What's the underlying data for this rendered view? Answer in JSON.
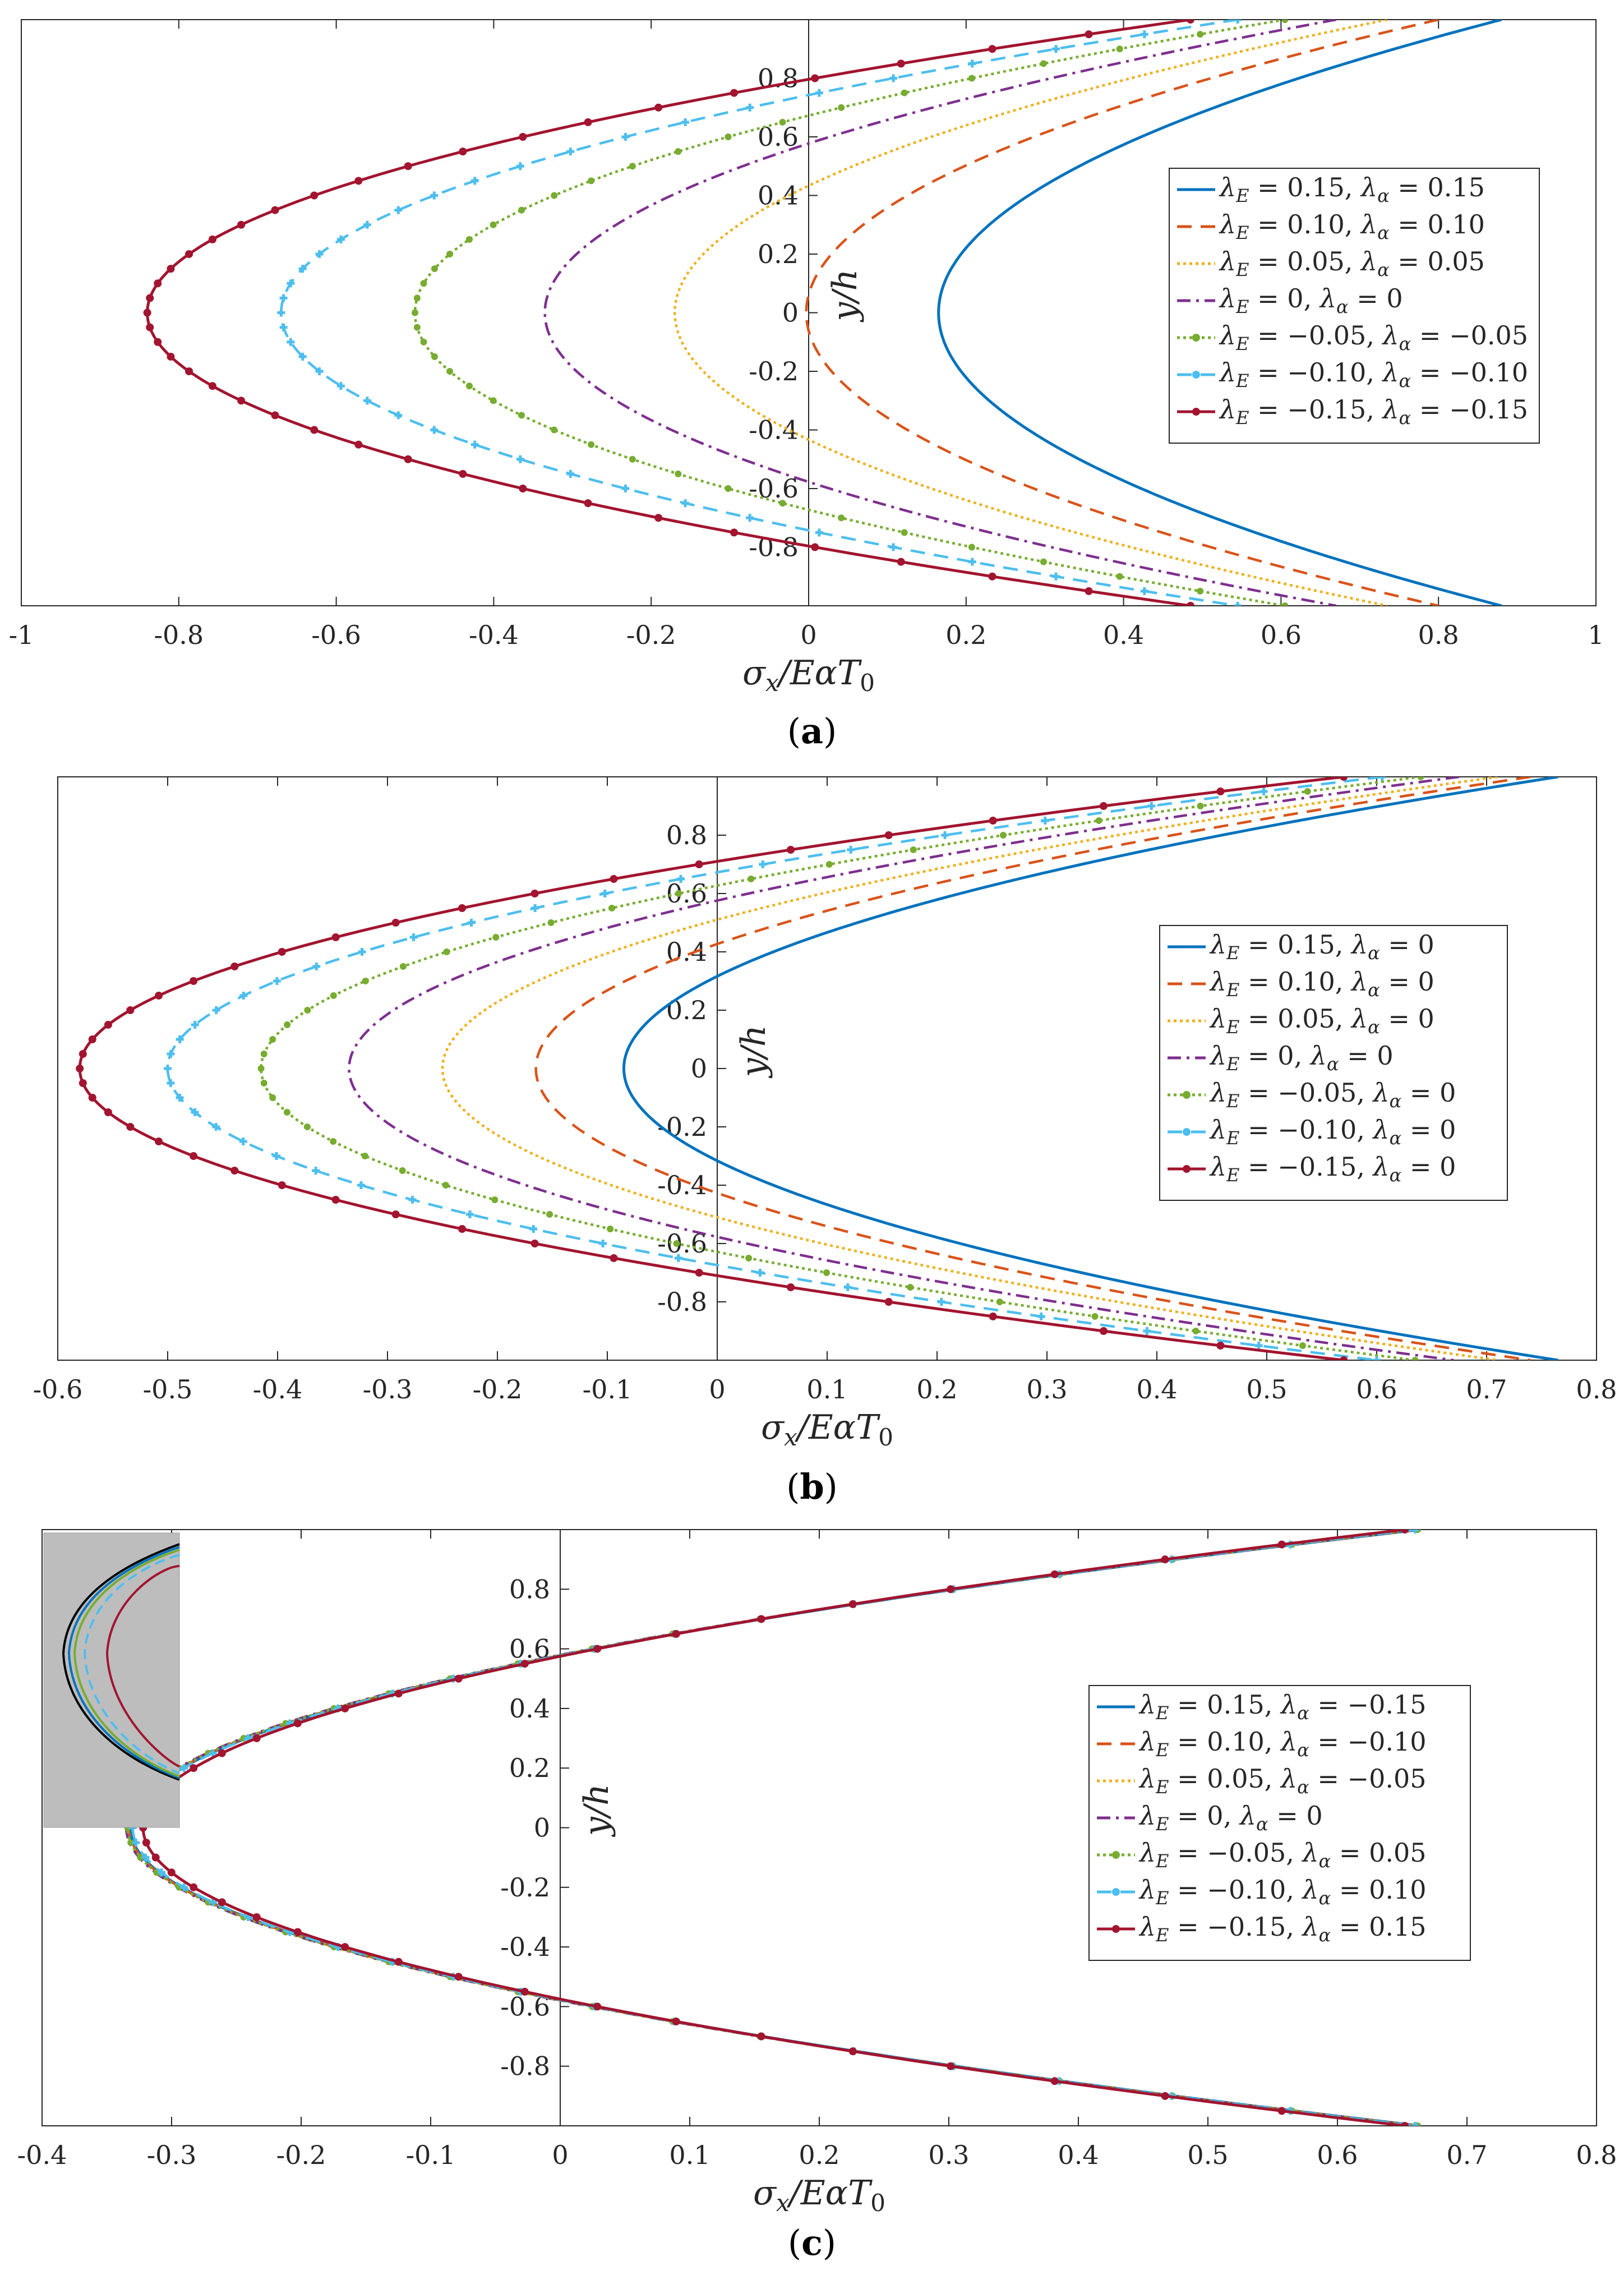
{
  "chart_data": [
    {
      "type": "line",
      "panel": "a",
      "caption_open": "(",
      "caption_letter": "a",
      "caption_close": ")",
      "xlabel": "σx/EαT0",
      "ylabel": "y/h",
      "xlim": [
        -1,
        1
      ],
      "ylim": [
        -1,
        1
      ],
      "xticks": [
        "-1",
        "-0.8",
        "-0.6",
        "-0.4",
        "-0.2",
        "0",
        "0.2",
        "0.4",
        "0.6",
        "0.8",
        "1"
      ],
      "yticks": [
        "0.8",
        "0.6",
        "0.4",
        "0.2",
        "0",
        "-0.2",
        "-0.4",
        "-0.6",
        "-0.8"
      ],
      "legend_position": "right",
      "series": [
        {
          "name": "λE = 0.15, λα = 0.15",
          "lE": "0.15",
          "la": "0.15",
          "vertex": 0.165,
          "end_top": 0.88,
          "end_bottom": 0.88,
          "color": "#0072BD",
          "style": "solid"
        },
        {
          "name": "λE = 0.10, λα = 0.10",
          "lE": "0.10",
          "la": "0.10",
          "vertex": -0.003,
          "end_top": 0.8,
          "end_bottom": 0.8,
          "color": "#D95319",
          "style": "dashed"
        },
        {
          "name": "λE = 0.05, λα = 0.05",
          "lE": "0.05",
          "la": "0.05",
          "vertex": -0.17,
          "end_top": 0.735,
          "end_bottom": 0.735,
          "color": "#EDB120",
          "style": "dotted"
        },
        {
          "name": "λE = 0, λα = 0",
          "lE": "0",
          "la": "0",
          "vertex": -0.335,
          "end_top": 0.67,
          "end_bottom": 0.67,
          "color": "#7E2F8E",
          "style": "dashdot"
        },
        {
          "name": "λE = −0.05, λα = −0.05",
          "lE": "−0.05",
          "la": "−0.05",
          "vertex": -0.5,
          "end_top": 0.605,
          "end_bottom": 0.605,
          "color": "#77AC30",
          "style": "dotted-marker"
        },
        {
          "name": "λE = −0.10, λα = −0.10",
          "lE": "−0.10",
          "la": "−0.10",
          "vertex": -0.67,
          "end_top": 0.545,
          "end_bottom": 0.545,
          "color": "#4DBEEE",
          "style": "dashed-marker"
        },
        {
          "name": "λE = −0.15, λα = −0.15",
          "lE": "−0.15",
          "la": "−0.15",
          "vertex": -0.84,
          "end_top": 0.485,
          "end_bottom": 0.485,
          "color": "#A2142F",
          "style": "solid-marker"
        }
      ]
    },
    {
      "type": "line",
      "panel": "b",
      "caption_open": "(",
      "caption_letter": "b",
      "caption_close": ")",
      "xlabel": "σx/EαT0",
      "ylabel": "y/h",
      "xlim": [
        -0.6,
        0.8
      ],
      "ylim": [
        -1,
        1
      ],
      "xticks": [
        "-0.6",
        "-0.5",
        "-0.4",
        "-0.3",
        "-0.2",
        "-0.1",
        "0",
        "0.1",
        "0.2",
        "0.3",
        "0.4",
        "0.5",
        "0.6",
        "0.7",
        "0.8"
      ],
      "yticks": [
        "0.8",
        "0.6",
        "0.4",
        "0.2",
        "0",
        "-0.2",
        "-0.4",
        "-0.6",
        "-0.8"
      ],
      "legend_position": "right",
      "series": [
        {
          "name": "λE = 0.15, λα = 0",
          "lE": "0.15",
          "la": "0",
          "vertex": -0.085,
          "end_top": 0.765,
          "end_bottom": 0.765,
          "color": "#0072BD",
          "style": "solid"
        },
        {
          "name": "λE = 0.10, λα = 0",
          "lE": "0.10",
          "la": "0",
          "vertex": -0.165,
          "end_top": 0.74,
          "end_bottom": 0.74,
          "color": "#D95319",
          "style": "dashed"
        },
        {
          "name": "λE = 0.05, λα = 0",
          "lE": "0.05",
          "la": "0",
          "vertex": -0.25,
          "end_top": 0.71,
          "end_bottom": 0.71,
          "color": "#EDB120",
          "style": "dotted"
        },
        {
          "name": "λE = 0, λα = 0",
          "lE": "0",
          "la": "0",
          "vertex": -0.335,
          "end_top": 0.675,
          "end_bottom": 0.67,
          "color": "#7E2F8E",
          "style": "dashdot"
        },
        {
          "name": "λE = −0.05, λα = 0",
          "lE": "−0.05",
          "la": "0",
          "vertex": -0.415,
          "end_top": 0.64,
          "end_bottom": 0.635,
          "color": "#77AC30",
          "style": "dotted-marker"
        },
        {
          "name": "λE = −0.10, λα = 0",
          "lE": "−0.10",
          "la": "0",
          "vertex": -0.5,
          "end_top": 0.605,
          "end_bottom": 0.6,
          "color": "#4DBEEE",
          "style": "dashed-marker"
        },
        {
          "name": "λE = −0.15, λα = 0",
          "lE": "−0.15",
          "la": "0",
          "vertex": -0.58,
          "end_top": 0.57,
          "end_bottom": 0.57,
          "color": "#A2142F",
          "style": "solid-marker"
        }
      ]
    },
    {
      "type": "line",
      "panel": "c",
      "caption_open": "(",
      "caption_letter": "c",
      "caption_close": ")",
      "xlabel": "σx/EαT0",
      "ylabel": "y/h",
      "xlim": [
        -0.4,
        0.8
      ],
      "ylim": [
        -1,
        1
      ],
      "xticks": [
        "-0.4",
        "-0.3",
        "-0.2",
        "-0.1",
        "0",
        "0.1",
        "0.2",
        "0.3",
        "0.4",
        "0.5",
        "0.6",
        "0.7",
        "0.8"
      ],
      "yticks": [
        "0.8",
        "0.6",
        "0.4",
        "0.2",
        "0",
        "-0.2",
        "-0.4",
        "-0.6",
        "-0.8"
      ],
      "legend_position": "right",
      "inset": "zoom near vertex",
      "series": [
        {
          "name": "λE = 0.15, λα = −0.15",
          "lE": "0.15",
          "la": "−0.15",
          "vertex": -0.332,
          "end_top": 0.664,
          "end_bottom": 0.664,
          "color": "#0072BD",
          "style": "solid"
        },
        {
          "name": "λE = 0.10, λα = −0.10",
          "lE": "0.10",
          "la": "−0.10",
          "vertex": -0.333,
          "end_top": 0.663,
          "end_bottom": 0.663,
          "color": "#D95319",
          "style": "dashed"
        },
        {
          "name": "λE = 0.05, λα = −0.05",
          "lE": "0.05",
          "la": "−0.05",
          "vertex": -0.334,
          "end_top": 0.662,
          "end_bottom": 0.662,
          "color": "#EDB120",
          "style": "dotted"
        },
        {
          "name": "λE = 0, λα = 0",
          "lE": "0",
          "la": "0",
          "vertex": -0.335,
          "end_top": 0.662,
          "end_bottom": 0.662,
          "color": "#7E2F8E",
          "style": "dashdot"
        },
        {
          "name": "λE = −0.05, λα = 0.05",
          "lE": "−0.05",
          "la": "0.05",
          "vertex": -0.334,
          "end_top": 0.662,
          "end_bottom": 0.662,
          "color": "#77AC30",
          "style": "dotted-marker"
        },
        {
          "name": "λE = −0.10, λα = 0.10",
          "lE": "−0.10",
          "la": "0.10",
          "vertex": -0.33,
          "end_top": 0.66,
          "end_bottom": 0.66,
          "color": "#4DBEEE",
          "style": "dashed-marker"
        },
        {
          "name": "λE = −0.15, λα = 0.15",
          "lE": "−0.15",
          "la": "0.15",
          "vertex": -0.322,
          "end_top": 0.652,
          "end_bottom": 0.652,
          "color": "#A2142F",
          "style": "solid-marker"
        }
      ]
    }
  ]
}
